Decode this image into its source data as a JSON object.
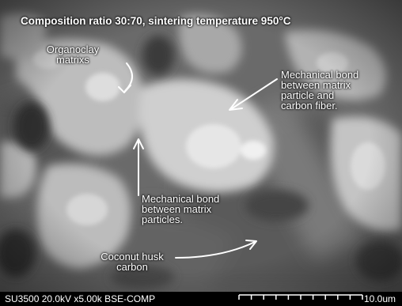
{
  "caption": {
    "title": "Composition ratio 30:70, sintering temperature 950°C"
  },
  "annotations": {
    "organoclay": [
      "Organoclay",
      "matrixs"
    ],
    "mechanical_bond_fiber": [
      "Mechanical bond",
      "between matrix",
      "particle and",
      "carbon fiber."
    ],
    "mechanical_bond_particles": [
      "Mechanical bond",
      "between matrix",
      "particles."
    ],
    "coconut_husk": [
      "Coconut  husk",
      "carbon"
    ]
  },
  "footer": {
    "instrument": "SU3500 20.0kV x5.00k BSE-COMP",
    "scale_label": "10.0um"
  },
  "colors": {
    "label_text": "#ffffff",
    "footer_bg": "#000000"
  }
}
